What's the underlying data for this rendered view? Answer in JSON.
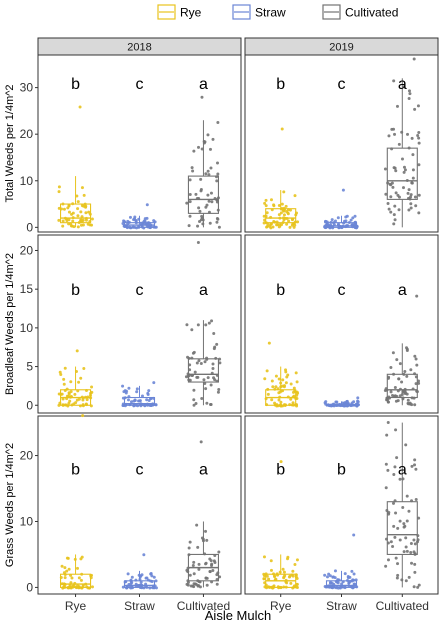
{
  "chart_data": {
    "type": "box",
    "title": "",
    "xlabel": "Aisle Mulch",
    "categories": [
      "Rye",
      "Straw",
      "Cultivated"
    ],
    "colors": {
      "Rye": "#E8C31D",
      "Straw": "#6B86D6",
      "Cultivated": "#737373"
    },
    "legend": {
      "position": "top",
      "entries": [
        "Rye",
        "Straw",
        "Cultivated"
      ]
    },
    "columns": [
      "2018",
      "2019"
    ],
    "grid": false,
    "rows": [
      {
        "ylabel": "Total Weeds per 1/4m^2",
        "ylim": [
          -1,
          37
        ],
        "yticks": [
          0,
          10,
          20,
          30
        ],
        "letter_y": 31,
        "panels": [
          {
            "year": "2018",
            "groups": [
              {
                "category": "Rye",
                "letter": "b",
                "q1": 1,
                "median": 2,
                "q3": 5,
                "whisker_low": 0,
                "whisker_high": 11,
                "max_point": 26,
                "n": 60
              },
              {
                "category": "Straw",
                "letter": "c",
                "q1": 0,
                "median": 0.5,
                "q3": 1,
                "whisker_low": 0,
                "whisker_high": 2.5,
                "max_point": 5,
                "n": 60
              },
              {
                "category": "Cultivated",
                "letter": "a",
                "q1": 3,
                "median": 6,
                "q3": 11,
                "whisker_low": 0,
                "whisker_high": 23,
                "max_point": 28,
                "n": 60
              }
            ]
          },
          {
            "year": "2019",
            "groups": [
              {
                "category": "Rye",
                "letter": "b",
                "q1": 1,
                "median": 2,
                "q3": 4,
                "whisker_low": 0,
                "whisker_high": 8,
                "max_point": 21,
                "n": 70
              },
              {
                "category": "Straw",
                "letter": "c",
                "q1": 0,
                "median": 0.3,
                "q3": 1,
                "whisker_low": 0,
                "whisker_high": 2.5,
                "max_point": 8,
                "n": 70
              },
              {
                "category": "Cultivated",
                "letter": "a",
                "q1": 6,
                "median": 10,
                "q3": 17,
                "whisker_low": 0,
                "whisker_high": 32,
                "max_point": 36,
                "n": 70
              }
            ]
          }
        ]
      },
      {
        "ylabel": "Broadleaf Weeds per 1/4m^2",
        "ylim": [
          -1,
          22
        ],
        "yticks": [
          0,
          5,
          10,
          15,
          20
        ],
        "letter_y": 15,
        "panels": [
          {
            "year": "2018",
            "groups": [
              {
                "category": "Rye",
                "letter": "b",
                "q1": 0,
                "median": 1,
                "q3": 2,
                "whisker_low": 0,
                "whisker_high": 5,
                "max_point": 7,
                "n": 60
              },
              {
                "category": "Straw",
                "letter": "c",
                "q1": 0,
                "median": 0.2,
                "q3": 1,
                "whisker_low": 0,
                "whisker_high": 2.5,
                "max_point": 3,
                "n": 60
              },
              {
                "category": "Cultivated",
                "letter": "a",
                "q1": 3,
                "median": 4,
                "q3": 6,
                "whisker_low": 0,
                "whisker_high": 11,
                "max_point": 21,
                "n": 60
              }
            ]
          },
          {
            "year": "2019",
            "groups": [
              {
                "category": "Rye",
                "letter": "b",
                "q1": 0,
                "median": 1,
                "q3": 2,
                "whisker_low": 0,
                "whisker_high": 5,
                "max_point": 8,
                "n": 70
              },
              {
                "category": "Straw",
                "letter": "c",
                "q1": 0,
                "median": 0,
                "q3": 0.1,
                "whisker_low": 0,
                "whisker_high": 0.5,
                "max_point": 1,
                "n": 70
              },
              {
                "category": "Cultivated",
                "letter": "a",
                "q1": 1,
                "median": 2,
                "q3": 4,
                "whisker_low": 0,
                "whisker_high": 8,
                "max_point": 14,
                "n": 70
              }
            ]
          }
        ]
      },
      {
        "ylabel": "Grass Weeds per 1/4m^2",
        "ylim": [
          -1,
          26
        ],
        "yticks": [
          0,
          10,
          20
        ],
        "letter_y": 18,
        "panels": [
          {
            "year": "2018",
            "groups": [
              {
                "category": "Rye",
                "letter": "b",
                "q1": 0,
                "median": 0.5,
                "q3": 2,
                "whisker_low": 0,
                "whisker_high": 5,
                "max_point": 26,
                "n": 60
              },
              {
                "category": "Straw",
                "letter": "c",
                "q1": 0,
                "median": 0.3,
                "q3": 1,
                "whisker_low": 0,
                "whisker_high": 2.5,
                "max_point": 5,
                "n": 60
              },
              {
                "category": "Cultivated",
                "letter": "a",
                "q1": 1,
                "median": 3,
                "q3": 5,
                "whisker_low": 0,
                "whisker_high": 10,
                "max_point": 22,
                "n": 60
              }
            ]
          },
          {
            "year": "2019",
            "groups": [
              {
                "category": "Rye",
                "letter": "b",
                "q1": 0,
                "median": 1,
                "q3": 2,
                "whisker_low": 0,
                "whisker_high": 5,
                "max_point": 19,
                "n": 70
              },
              {
                "category": "Straw",
                "letter": "b",
                "q1": 0,
                "median": 0.3,
                "q3": 1,
                "whisker_low": 0,
                "whisker_high": 2.5,
                "max_point": 8,
                "n": 70
              },
              {
                "category": "Cultivated",
                "letter": "a",
                "q1": 5,
                "median": 8,
                "q3": 13,
                "whisker_low": 0,
                "whisker_high": 25,
                "max_point": 25,
                "n": 70
              }
            ]
          }
        ]
      }
    ]
  }
}
